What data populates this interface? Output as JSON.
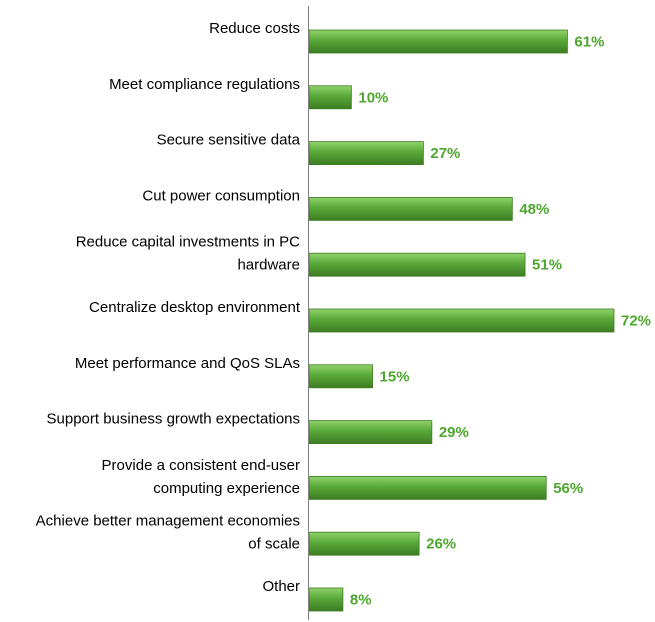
{
  "chart_data": {
    "type": "bar",
    "orientation": "horizontal",
    "categories": [
      [
        "Reduce costs"
      ],
      [
        "Meet compliance regulations"
      ],
      [
        "Secure sensitive data"
      ],
      [
        "Cut power consumption"
      ],
      [
        "Reduce capital investments in PC",
        "hardware"
      ],
      [
        "Centralize desktop environment"
      ],
      [
        "Meet performance and QoS SLAs"
      ],
      [
        "Support business growth expectations"
      ],
      [
        "Provide a consistent end-user",
        "computing experience"
      ],
      [
        "Achieve better management economies",
        "of scale"
      ],
      [
        "Other"
      ]
    ],
    "values": [
      61,
      10,
      27,
      48,
      51,
      72,
      15,
      29,
      56,
      26,
      8
    ],
    "value_labels": [
      "61%",
      "10%",
      "27%",
      "48%",
      "51%",
      "72%",
      "15%",
      "29%",
      "56%",
      "26%",
      "8%"
    ],
    "title": "",
    "xlabel": "",
    "ylabel": "",
    "xlim": [
      0,
      72
    ],
    "grid": false,
    "legend": "none",
    "bar_color": "#5aa83a",
    "bar_color_light": "#8fd36a",
    "bar_color_dark": "#3c7d22",
    "label_color": "#4ea72e"
  }
}
